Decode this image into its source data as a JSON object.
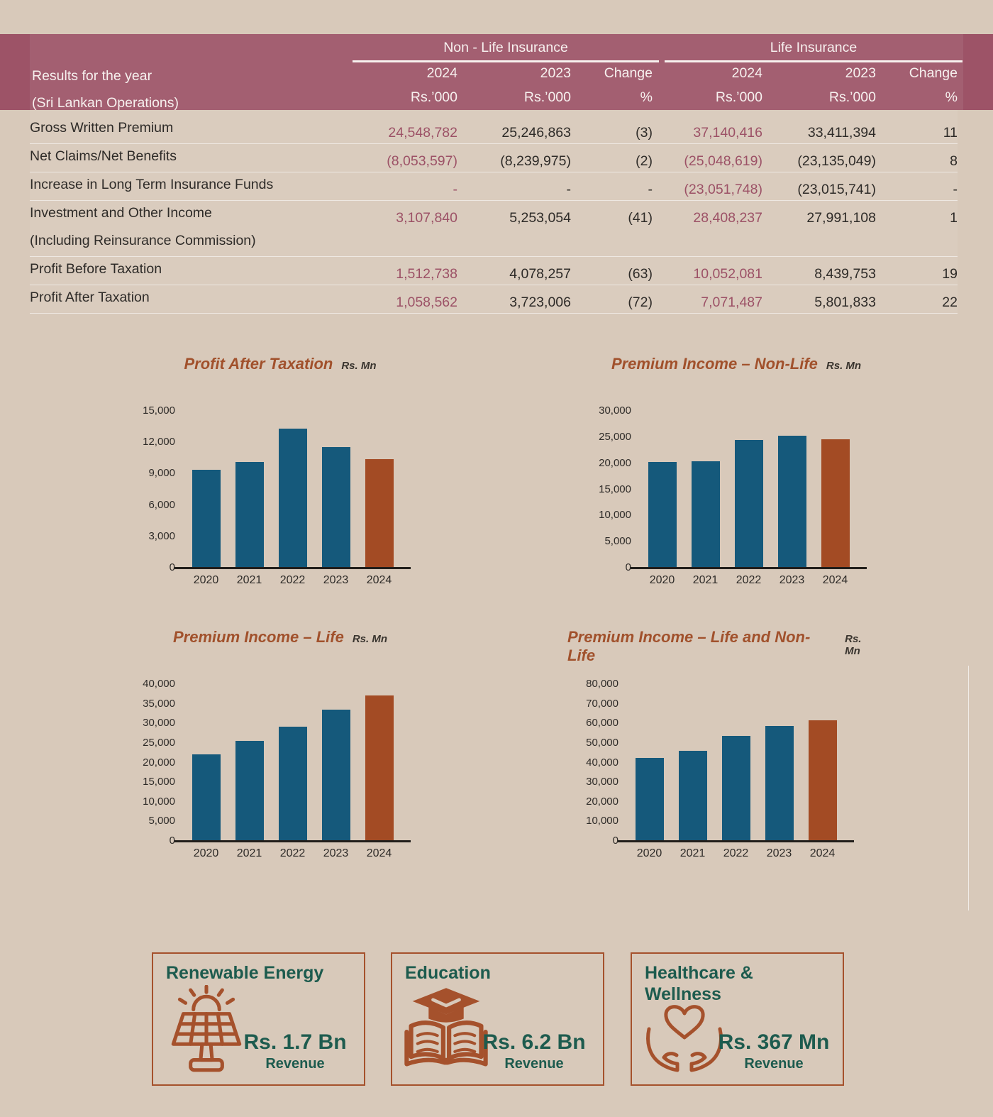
{
  "colors": {
    "background": "#d8c9ba",
    "header_band": "#9d5367",
    "header_text": "#f7f1ef",
    "body_text": "#2e2b28",
    "accent_maroon": "#9c5166",
    "bar_blue": "#15597b",
    "bar_rust": "#a34b24",
    "title_rust": "#a1512c",
    "card_teal": "#1d5b4e"
  },
  "table": {
    "title_line1": "Results for the year",
    "title_line2": "(Sri Lankan Operations)",
    "group_headers": [
      "Non - Life Insurance",
      "Life Insurance"
    ],
    "column_years": [
      "2024",
      "2023",
      "Change",
      "2024",
      "2023",
      "Change"
    ],
    "column_units": [
      "Rs.’000",
      "Rs.’000",
      "%",
      "Rs.’000",
      "Rs.’000",
      "%"
    ],
    "rows": [
      {
        "label": "Gross Written Premium",
        "values": [
          "24,548,782",
          "25,246,863",
          "(3)",
          "37,140,416",
          "33,411,394",
          "11"
        ],
        "separator": true
      },
      {
        "label": "Net Claims/Net Benefits",
        "values": [
          "(8,053,597)",
          "(8,239,975)",
          "(2)",
          "(25,048,619)",
          "(23,135,049)",
          "8"
        ],
        "separator": true
      },
      {
        "label": "Increase in Long Term Insurance Funds",
        "values": [
          "-",
          "-",
          "-",
          "(23,051,748)",
          "(23,015,741)",
          "-"
        ],
        "separator": true
      },
      {
        "label": "Investment and Other Income",
        "values": [
          "3,107,840",
          "5,253,054",
          "(41)",
          "28,408,237",
          "27,991,108",
          "1"
        ],
        "separator": false
      },
      {
        "label": "(Including Reinsurance Commission)",
        "values": [
          "",
          "",
          "",
          "",
          "",
          ""
        ],
        "separator": true
      },
      {
        "label": "Profit Before Taxation",
        "values": [
          "1,512,738",
          "4,078,257",
          "(63)",
          "10,052,081",
          "8,439,753",
          "19"
        ],
        "separator": true
      },
      {
        "label": "Profit After Taxation",
        "values": [
          "1,058,562",
          "3,723,006",
          "(72)",
          "7,071,487",
          "5,801,833",
          "22"
        ],
        "separator": true
      }
    ]
  },
  "chart_data": [
    {
      "type": "bar",
      "title": "Profit After Taxation",
      "unit": "Rs. Mn",
      "categories": [
        "2020",
        "2021",
        "2022",
        "2023",
        "2024"
      ],
      "values": [
        9400,
        10100,
        13300,
        11550,
        10400
      ],
      "ylim": [
        0,
        15000
      ],
      "ytick_step": 3000,
      "grid": false,
      "highlight_last": true
    },
    {
      "type": "bar",
      "title": "Premium Income – Non-Life",
      "unit": "Rs. Mn",
      "categories": [
        "2020",
        "2021",
        "2022",
        "2023",
        "2024"
      ],
      "values": [
        20200,
        20350,
        24450,
        25300,
        24549
      ],
      "ylim": [
        0,
        30000
      ],
      "ytick_step": 5000,
      "grid": false,
      "highlight_last": true
    },
    {
      "type": "bar",
      "title": "Premium Income – Life",
      "unit": "Rs. Mn",
      "categories": [
        "2020",
        "2021",
        "2022",
        "2023",
        "2024"
      ],
      "values": [
        22100,
        25500,
        29200,
        33411,
        37140
      ],
      "ylim": [
        0,
        40000
      ],
      "ytick_step": 5000,
      "grid": false,
      "highlight_last": true
    },
    {
      "type": "bar",
      "title": "Premium Income – Life and Non-Life",
      "unit": "Rs. Mn",
      "categories": [
        "2020",
        "2021",
        "2022",
        "2023",
        "2024"
      ],
      "values": [
        42400,
        46000,
        53600,
        58658,
        61689
      ],
      "ylim": [
        0,
        80000
      ],
      "ytick_step": 10000,
      "grid": false,
      "highlight_last": true
    }
  ],
  "cards": [
    {
      "title": "Renewable Energy",
      "icon": "solar-panel-icon",
      "value": "Rs. 1.7 Bn",
      "caption": "Revenue"
    },
    {
      "title": "Education",
      "icon": "education-book-icon",
      "value": "Rs. 6.2 Bn",
      "caption": "Revenue"
    },
    {
      "title": "Healthcare & Wellness",
      "icon": "hands-heart-icon",
      "value": "Rs. 367 Mn",
      "caption": "Revenue"
    }
  ]
}
